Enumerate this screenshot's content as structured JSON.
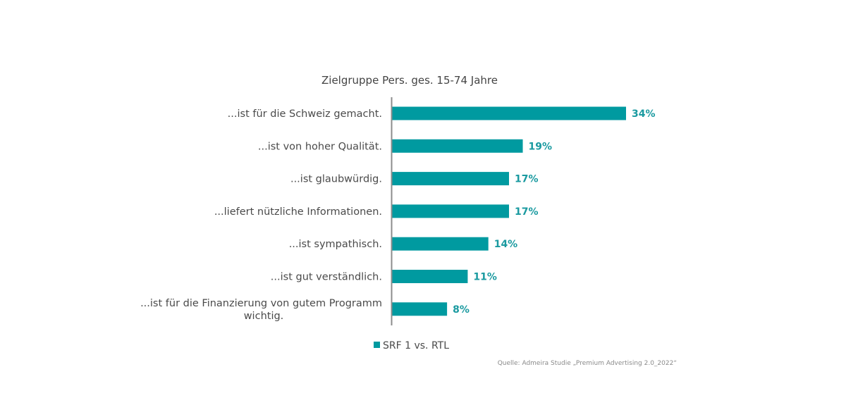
{
  "chart_data": {
    "type": "bar",
    "orientation": "horizontal",
    "title": "Zielgruppe Pers. ges. 15-74 Jahre",
    "categories": [
      [
        "...ist für die Schweiz gemacht."
      ],
      [
        "...ist von hoher Qualität."
      ],
      [
        "...ist glaubwürdig."
      ],
      [
        "...liefert nützliche Informationen."
      ],
      [
        "...ist sympathisch."
      ],
      [
        "...ist gut verständlich."
      ],
      [
        "...ist für die Finanzierung von gutem Programm",
        "wichtig."
      ]
    ],
    "series": [
      {
        "name": "SRF 1 vs. RTL",
        "values": [
          34,
          19,
          17,
          17,
          14,
          11,
          8
        ],
        "labels": [
          "34%",
          "19%",
          "17%",
          "17%",
          "14%",
          "11%",
          "8%"
        ],
        "color": "#009aa0"
      }
    ],
    "legend_position": "bottom",
    "grid": false,
    "source": "Quelle: Admeira Studie „Premium Advertising 2.0_2022“"
  }
}
